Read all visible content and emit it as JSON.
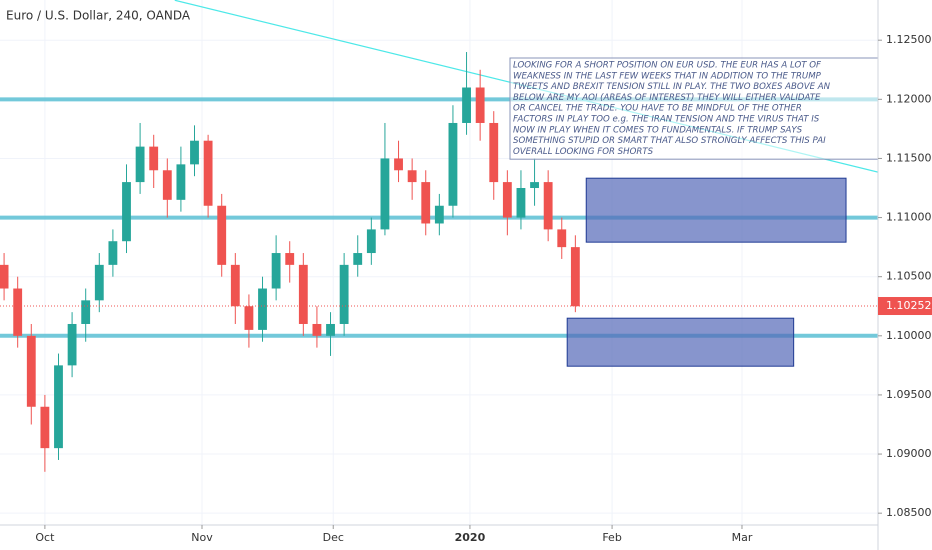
{
  "chart_data": {
    "type": "candlestick",
    "title": "Euro / U.S. Dollar, 240, OANDA",
    "x": [
      -6,
      -4,
      -2,
      0,
      2,
      4,
      6,
      8,
      10,
      12,
      14,
      16,
      18,
      20,
      22,
      24,
      26,
      28,
      30,
      32,
      34,
      36,
      38,
      40,
      42,
      44,
      46,
      48,
      50,
      52,
      54,
      56,
      58,
      60,
      62,
      64,
      66,
      68,
      70,
      72,
      74,
      76,
      78
    ],
    "open": [
      1.106,
      1.104,
      1.1,
      1.094,
      1.0905,
      1.0975,
      1.101,
      1.103,
      1.106,
      1.108,
      1.113,
      1.116,
      1.114,
      1.1115,
      1.1145,
      1.1165,
      1.111,
      1.106,
      1.1025,
      1.1005,
      1.104,
      1.107,
      1.106,
      1.101,
      1.1,
      1.101,
      1.106,
      1.107,
      1.109,
      1.115,
      1.114,
      1.113,
      1.1095,
      1.111,
      1.118,
      1.121,
      1.118,
      1.113,
      1.11,
      1.1125,
      1.113,
      1.109,
      1.1075
    ],
    "high": [
      1.107,
      1.105,
      1.101,
      1.095,
      1.0985,
      1.102,
      1.104,
      1.107,
      1.109,
      1.1145,
      1.118,
      1.117,
      1.115,
      1.116,
      1.1178,
      1.117,
      1.112,
      1.107,
      1.1035,
      1.105,
      1.1085,
      1.108,
      1.107,
      1.1025,
      1.102,
      1.107,
      1.1085,
      1.11,
      1.118,
      1.1165,
      1.115,
      1.114,
      1.112,
      1.1195,
      1.124,
      1.1225,
      1.119,
      1.114,
      1.114,
      1.115,
      1.114,
      1.11,
      1.1085
    ],
    "low": [
      1.103,
      1.099,
      1.0925,
      1.0885,
      1.0895,
      1.0965,
      1.0995,
      1.102,
      1.105,
      1.107,
      1.112,
      1.1125,
      1.11,
      1.1105,
      1.1135,
      1.11,
      1.105,
      1.101,
      1.099,
      1.0995,
      1.103,
      1.1045,
      1.1,
      1.099,
      1.0983,
      1.1,
      1.105,
      1.106,
      1.1085,
      1.113,
      1.1115,
      1.1085,
      1.1085,
      1.11,
      1.117,
      1.1165,
      1.1115,
      1.1085,
      1.109,
      1.111,
      1.108,
      1.1065,
      1.102
    ],
    "close": [
      1.104,
      1.1,
      1.094,
      1.0905,
      1.0975,
      1.101,
      1.103,
      1.106,
      1.108,
      1.113,
      1.116,
      1.114,
      1.1115,
      1.1145,
      1.1165,
      1.111,
      1.106,
      1.1025,
      1.1005,
      1.104,
      1.107,
      1.106,
      1.101,
      1.1,
      1.101,
      1.106,
      1.107,
      1.109,
      1.115,
      1.114,
      1.113,
      1.1095,
      1.111,
      1.118,
      1.121,
      1.118,
      1.113,
      1.11,
      1.1125,
      1.113,
      1.109,
      1.1075,
      1.1025
    ],
    "up_color": "#26a69a",
    "down_color": "#ef5350",
    "xlim": [
      -6.6,
      122.5
    ],
    "ylim": [
      1.084,
      1.1284
    ],
    "xticks": [
      {
        "value": 0,
        "label": "Oct"
      },
      {
        "value": 23.1,
        "label": "Nov"
      },
      {
        "value": 42.4,
        "label": "Dec"
      },
      {
        "value": 62.5,
        "label": "2020"
      },
      {
        "value": 83.4,
        "label": "Feb"
      },
      {
        "value": 102.5,
        "label": "Mar"
      }
    ],
    "yticks": [
      {
        "value": 1.085,
        "label": "1.08500"
      },
      {
        "value": 1.09,
        "label": "1.09000"
      },
      {
        "value": 1.095,
        "label": "1.09500"
      },
      {
        "value": 1.1,
        "label": "1.10000"
      },
      {
        "value": 1.105,
        "label": "1.10500"
      },
      {
        "value": 1.11,
        "label": "1.11000"
      },
      {
        "value": 1.115,
        "label": "1.11500"
      },
      {
        "value": 1.12,
        "label": "1.12000"
      },
      {
        "value": 1.125,
        "label": "1.12500"
      }
    ],
    "grid": true,
    "levels": {
      "values": [
        1.12,
        1.11,
        1.1
      ],
      "color": "#5bc0d4"
    },
    "last_price": {
      "value": 1.10252,
      "label": "1.10252",
      "color": "#ef5350"
    },
    "trendline": {
      "x": [
        19.1,
        122.5
      ],
      "y": [
        1.12838,
        1.11384
      ],
      "color": "#4de8e8"
    },
    "boxes": [
      {
        "x": [
          79.6,
          117.8
        ],
        "y": [
          1.10792,
          1.11333
        ]
      },
      {
        "x": [
          76.8,
          110.1
        ],
        "y": [
          1.09743,
          1.10149
        ]
      }
    ],
    "note": [
      "LOOKING FOR A SHORT POSITION ON EUR USD. THE EUR HAS A LOT OF",
      "WEAKNESS IN THE LAST FEW WEEKS THAT IN ADDITION TO THE  TRUMP",
      "TWEETS AND BREXIT TENSION STILL IN PLAY. THE TWO BOXES ABOVE AN",
      "BELOW ARE MY AOI (AREAS OF INTEREST) THEY WILL EITHER VALIDATE",
      "OR CANCEL THE TRADE. YOU HAVE TO BE MINDFUL OF THE OTHER",
      "FACTORS IN PLAY TOO    e.g. THE IRAN TENSION AND THE VIRUS THAT IS",
      "NOW IN PLAY WHEN IT COMES TO FUNDAMENTALS. IF TRUMP SAYS",
      "SOMETHING STUPID OR SMART THAT ALSO STRONGLY AFFECTS THIS PAI",
      "OVERALL LOOKING FOR SHORTS"
    ]
  }
}
